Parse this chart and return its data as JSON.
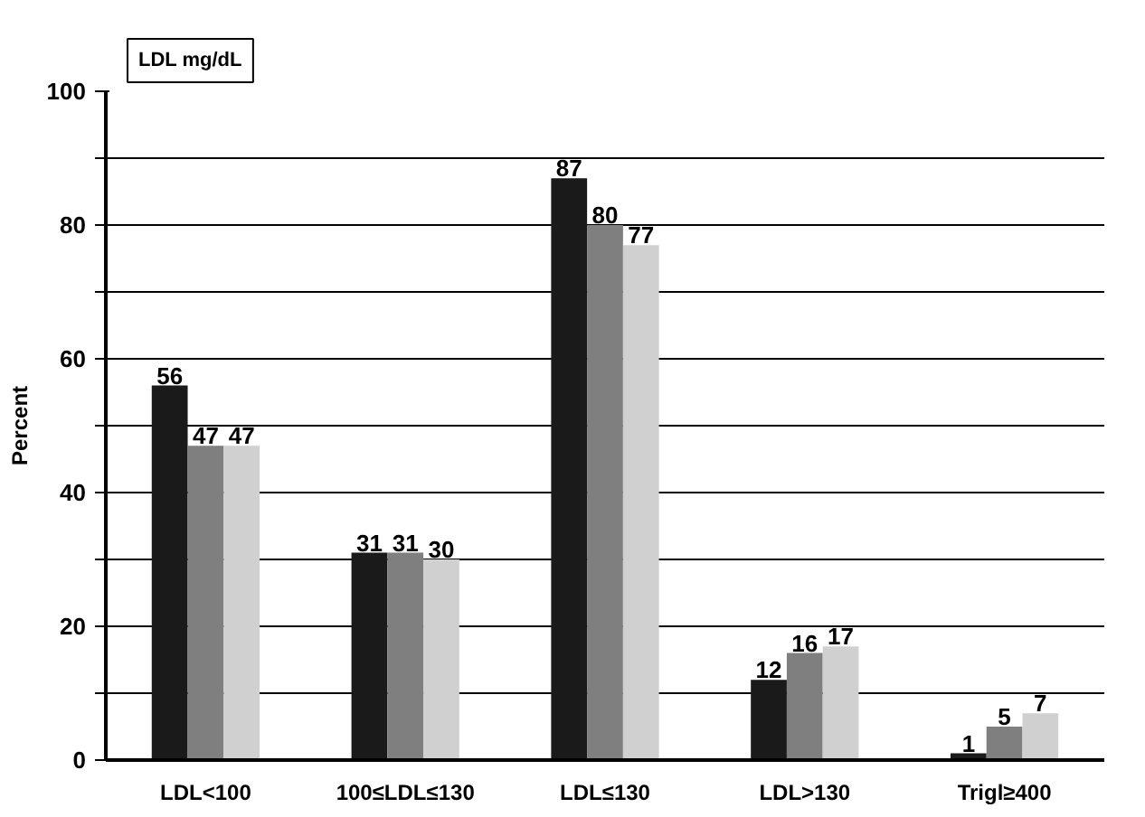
{
  "chart_data": {
    "type": "bar",
    "title": "LDL mg/dL",
    "ylabel": "Percent",
    "categories": [
      "LDL<100",
      "100≤LDL≤130",
      "LDL≤130",
      "LDL>130",
      "Trigl≥400"
    ],
    "series": [
      {
        "color": "#1a1a1a",
        "values": [
          56,
          31,
          87,
          12,
          1
        ]
      },
      {
        "color": "#7f7f7f",
        "values": [
          47,
          31,
          80,
          16,
          5
        ]
      },
      {
        "color": "#d0d0d0",
        "values": [
          47,
          30,
          77,
          17,
          7
        ]
      }
    ],
    "ylim": [
      0,
      100
    ],
    "yticks": [
      0,
      {
        "value": 10,
        "label": null
      },
      20,
      {
        "value": 30,
        "label": null
      },
      40,
      {
        "value": 50,
        "label": null
      },
      60,
      {
        "value": 70,
        "label": null
      },
      80,
      {
        "value": 90,
        "label": null
      },
      100
    ],
    "grid": "y",
    "data_labels": true
  }
}
